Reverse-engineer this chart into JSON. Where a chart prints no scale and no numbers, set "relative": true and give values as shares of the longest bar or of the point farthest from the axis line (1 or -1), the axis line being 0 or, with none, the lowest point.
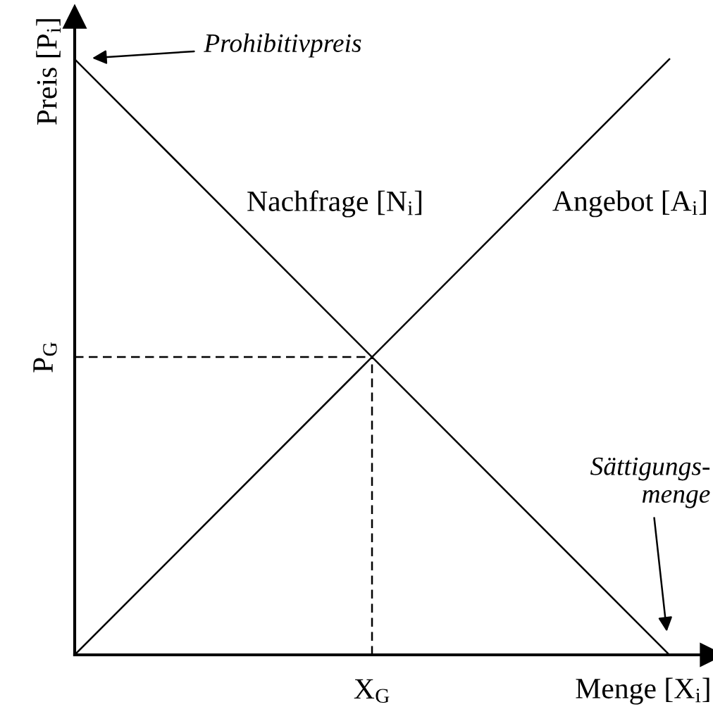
{
  "chart_data": {
    "type": "line",
    "relative": true,
    "xlabel": "Menge [X$_{i}$]",
    "ylabel": "Preis [P$_{i}$]",
    "categories": [
      null,
      null,
      null
    ],
    "series": [
      {
        "name": "Nachfrage [N$_{i}$]",
        "color": "#000000",
        "values": [
          1,
          0.5,
          0
        ]
      },
      {
        "name": "Angebot [A$_{i}$]",
        "color": "#000000",
        "values": [
          0,
          0.5,
          1
        ]
      }
    ],
    "ref_lines": [
      {
        "axis": "y",
        "value": 0.5,
        "label": "P$_{G}$",
        "color": "#000000",
        "line_style": "dashed"
      }
    ],
    "annotations": [
      "Prohibitivpreis",
      "Sättigungs-\nmenge",
      "X$_{G}$"
    ]
  }
}
